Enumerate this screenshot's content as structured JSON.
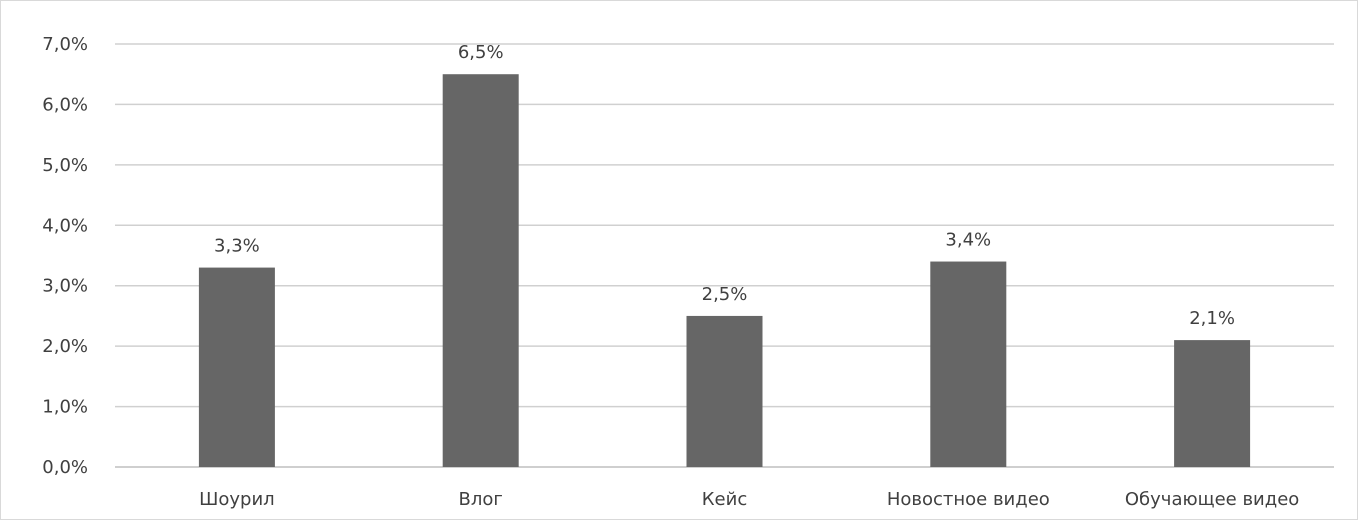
{
  "chart_data": {
    "type": "bar",
    "categories": [
      "Шоурил",
      "Влог",
      "Кейс",
      "Новостное видео",
      "Обучающее видео"
    ],
    "values": [
      3.3,
      6.5,
      2.5,
      3.4,
      2.1
    ],
    "data_labels": [
      "3,3%",
      "6,5%",
      "2,5%",
      "3,4%",
      "2,1%"
    ],
    "y_ticks": [
      0,
      1,
      2,
      3,
      4,
      5,
      6,
      7
    ],
    "y_tick_labels": [
      "0,0%",
      "1,0%",
      "2,0%",
      "3,0%",
      "4,0%",
      "5,0%",
      "6,0%",
      "7,0%"
    ],
    "ylim": [
      0,
      7
    ],
    "grid": true,
    "legend": "none",
    "colors": {
      "bar": "#666666",
      "grid": "#d0d0d0",
      "text": "#404040"
    }
  }
}
